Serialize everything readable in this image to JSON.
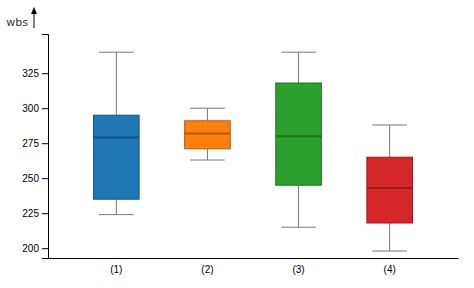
{
  "chart_data": {
    "type": "box",
    "ylabel": "wbs",
    "categories": [
      "(1)",
      "(2)",
      "(3)",
      "(4)"
    ],
    "whisker_low": [
      224,
      263,
      215,
      198
    ],
    "q1": [
      235,
      271,
      245,
      218
    ],
    "median": [
      279,
      282,
      280,
      243
    ],
    "q3": [
      295,
      291,
      318,
      265
    ],
    "whisker_high": [
      340,
      300,
      340,
      288
    ],
    "ylim": [
      193,
      353
    ],
    "yticks": [
      200,
      225,
      250,
      275,
      300,
      325
    ],
    "grid": false
  }
}
